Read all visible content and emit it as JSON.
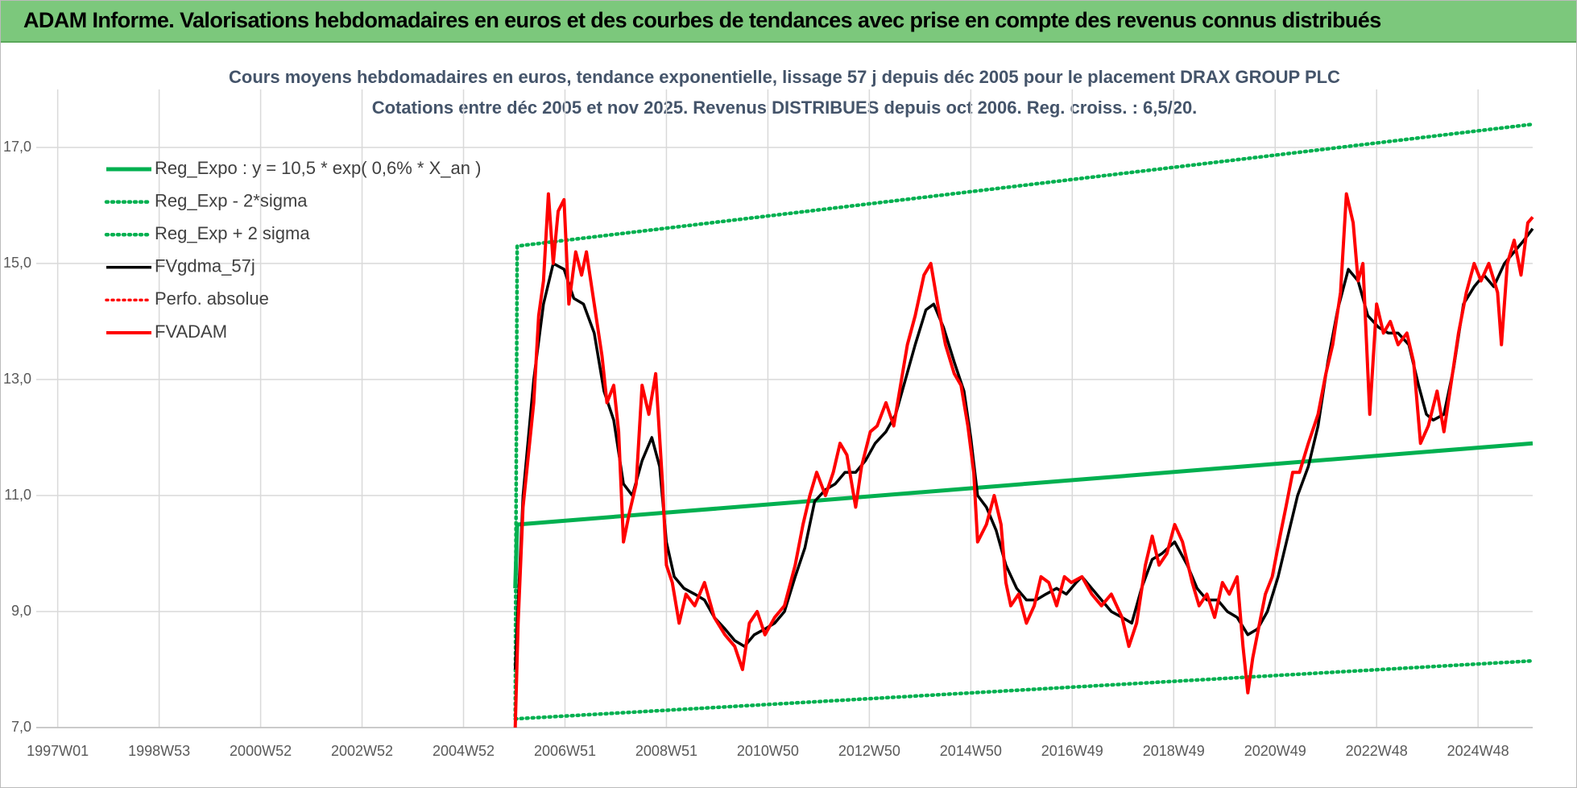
{
  "header": {
    "title": "ADAM Informe. Valorisations hebdomadaires en euros et des courbes de tendances avec prise en compte des revenus connus distribués"
  },
  "chart_data": {
    "type": "line",
    "title": "Cours moyens hebdomadaires en euros, tendance exponentielle, lissage 57 j depuis déc 2005 pour le placement DRAX GROUP PLC",
    "subtitle": "Cotations entre déc 2005 et nov 2025. Revenus DISTRIBUES depuis oct 2006. Reg. croiss. : 6,5/20.",
    "xlim": [
      -22,
      1512
    ],
    "xticks": [
      {
        "value": 0,
        "label": "1997W01"
      },
      {
        "value": 104,
        "label": "1998W53"
      },
      {
        "value": 208,
        "label": "2000W52"
      },
      {
        "value": 312,
        "label": "2002W52"
      },
      {
        "value": 416,
        "label": "2004W52"
      },
      {
        "value": 520,
        "label": "2006W51"
      },
      {
        "value": 624,
        "label": "2008W51"
      },
      {
        "value": 728,
        "label": "2010W50"
      },
      {
        "value": 832,
        "label": "2012W50"
      },
      {
        "value": 936,
        "label": "2014W50"
      },
      {
        "value": 1040,
        "label": "2016W49"
      },
      {
        "value": 1144,
        "label": "2018W49"
      },
      {
        "value": 1248,
        "label": "2020W49"
      },
      {
        "value": 1352,
        "label": "2022W48"
      },
      {
        "value": 1456,
        "label": "2024W48"
      }
    ],
    "ylim": [
      7,
      18
    ],
    "yticks": [
      {
        "value": 7,
        "label": "7,0"
      },
      {
        "value": 9,
        "label": "9,0"
      },
      {
        "value": 11,
        "label": "11,0"
      },
      {
        "value": 13,
        "label": "13,0"
      },
      {
        "value": 15,
        "label": "15,0"
      },
      {
        "value": 17,
        "label": "17,0"
      }
    ],
    "grid": true,
    "legend": "upper left",
    "series": [
      {
        "name": "Reg_Expo : y = 10,5 * exp( 0,6% *  X_an )",
        "color": "#00b050",
        "style": "solid",
        "x": [
          469,
          471,
          1512
        ],
        "values": [
          9.4,
          10.5,
          11.9
        ]
      },
      {
        "name": "Reg_Exp - 2*sigma",
        "color": "#00b050",
        "style": "dotted",
        "x": [
          469,
          1512
        ],
        "values": [
          7.15,
          8.15
        ]
      },
      {
        "name": "Reg_Exp + 2 sigma",
        "color": "#00b050",
        "style": "dotted",
        "x": [
          469,
          471,
          1512
        ],
        "values": [
          7.2,
          15.3,
          17.4
        ]
      },
      {
        "name": "FVgdma_57j",
        "color": "#000000",
        "style": "solid",
        "x": [
          469,
          477,
          488,
          498,
          508,
          519,
          529,
          539,
          550,
          560,
          570,
          580,
          589,
          599,
          609,
          617,
          624,
          632,
          642,
          653,
          663,
          673,
          684,
          694,
          704,
          714,
          725,
          735,
          745,
          756,
          766,
          776,
          787,
          797,
          807,
          818,
          828,
          838,
          849,
          859,
          869,
          879,
          890,
          898,
          908,
          919,
          929,
          936,
          943,
          952,
          962,
          972,
          983,
          993,
          1003,
          1013,
          1024,
          1034,
          1044,
          1050,
          1060,
          1070,
          1080,
          1091,
          1101,
          1111,
          1122,
          1132,
          1145,
          1158,
          1168,
          1178,
          1189,
          1199,
          1209,
          1220,
          1230,
          1240,
          1251,
          1261,
          1271,
          1282,
          1292,
          1302,
          1312,
          1323,
          1333,
          1343,
          1354,
          1364,
          1374,
          1385,
          1395,
          1403,
          1410,
          1421,
          1431,
          1441,
          1452,
          1462,
          1472,
          1483,
          1493,
          1503,
          1512
        ],
        "values": [
          8.0,
          11.0,
          13.0,
          14.3,
          15.0,
          14.9,
          14.4,
          14.3,
          13.8,
          12.8,
          12.3,
          11.2,
          11.0,
          11.6,
          12.0,
          11.5,
          10.2,
          9.6,
          9.4,
          9.3,
          9.2,
          8.9,
          8.7,
          8.5,
          8.4,
          8.6,
          8.7,
          8.8,
          9.0,
          9.6,
          10.1,
          10.9,
          11.1,
          11.2,
          11.4,
          11.4,
          11.6,
          11.9,
          12.1,
          12.4,
          13.0,
          13.6,
          14.2,
          14.3,
          13.9,
          13.3,
          12.8,
          12.0,
          11.0,
          10.8,
          10.4,
          9.8,
          9.4,
          9.2,
          9.2,
          9.3,
          9.4,
          9.3,
          9.5,
          9.6,
          9.4,
          9.2,
          9.0,
          8.9,
          8.8,
          9.4,
          9.9,
          10.0,
          10.2,
          9.8,
          9.4,
          9.2,
          9.2,
          9.0,
          8.9,
          8.6,
          8.7,
          9.0,
          9.6,
          10.3,
          11.0,
          11.5,
          12.2,
          13.3,
          14.2,
          14.9,
          14.7,
          14.1,
          13.9,
          13.8,
          13.8,
          13.6,
          12.9,
          12.4,
          12.3,
          12.4,
          13.2,
          14.3,
          14.6,
          14.8,
          14.6,
          15.0,
          15.2,
          15.4,
          15.6
        ]
      },
      {
        "name": "Perfo. absolue",
        "color": "#ff0000",
        "style": "dotted",
        "x": [],
        "values": []
      },
      {
        "name": "FVADAM",
        "color": "#ff0000",
        "style": "solid",
        "x": [
          469,
          472,
          477,
          488,
          493,
          498,
          503,
          508,
          513,
          519,
          524,
          531,
          537,
          542,
          550,
          558,
          563,
          570,
          575,
          580,
          586,
          593,
          599,
          606,
          613,
          620,
          624,
          630,
          637,
          644,
          653,
          663,
          673,
          684,
          694,
          702,
          709,
          717,
          725,
          735,
          745,
          756,
          764,
          771,
          778,
          787,
          795,
          802,
          809,
          818,
          824,
          833,
          840,
          849,
          857,
          864,
          871,
          879,
          888,
          895,
          902,
          910,
          919,
          926,
          933,
          939,
          943,
          952,
          960,
          967,
          972,
          977,
          985,
          993,
          1001,
          1008,
          1016,
          1024,
          1032,
          1039,
          1050,
          1060,
          1070,
          1080,
          1091,
          1098,
          1106,
          1115,
          1122,
          1129,
          1137,
          1145,
          1153,
          1163,
          1170,
          1178,
          1186,
          1194,
          1201,
          1209,
          1215,
          1220,
          1225,
          1232,
          1238,
          1245,
          1253,
          1259,
          1266,
          1273,
          1282,
          1292,
          1300,
          1307,
          1315,
          1321,
          1328,
          1333,
          1338,
          1345,
          1352,
          1359,
          1366,
          1374,
          1383,
          1390,
          1397,
          1405,
          1414,
          1421,
          1428,
          1436,
          1444,
          1452,
          1459,
          1467,
          1476,
          1480,
          1486,
          1493,
          1500,
          1507,
          1512
        ],
        "values": [
          7.0,
          8.8,
          10.8,
          12.6,
          14.1,
          14.7,
          16.2,
          15.0,
          15.9,
          16.1,
          14.3,
          15.2,
          14.8,
          15.2,
          14.3,
          13.4,
          12.6,
          12.9,
          12.1,
          10.2,
          10.7,
          11.2,
          12.9,
          12.4,
          13.1,
          11.2,
          9.8,
          9.5,
          8.8,
          9.3,
          9.1,
          9.5,
          8.9,
          8.6,
          8.4,
          8.0,
          8.8,
          9.0,
          8.6,
          8.9,
          9.1,
          9.8,
          10.5,
          11.0,
          11.4,
          11.0,
          11.4,
          11.9,
          11.7,
          10.8,
          11.5,
          12.1,
          12.2,
          12.6,
          12.2,
          12.9,
          13.6,
          14.1,
          14.8,
          15.0,
          14.3,
          13.6,
          13.1,
          12.9,
          12.2,
          11.4,
          10.2,
          10.5,
          11.0,
          10.5,
          9.5,
          9.1,
          9.3,
          8.8,
          9.1,
          9.6,
          9.5,
          9.1,
          9.6,
          9.5,
          9.6,
          9.3,
          9.1,
          9.3,
          8.9,
          8.4,
          8.8,
          9.8,
          10.3,
          9.8,
          10.0,
          10.5,
          10.2,
          9.5,
          9.1,
          9.3,
          8.9,
          9.5,
          9.3,
          9.6,
          8.4,
          7.6,
          8.2,
          8.8,
          9.3,
          9.6,
          10.3,
          10.8,
          11.4,
          11.4,
          11.9,
          12.4,
          13.1,
          13.6,
          14.5,
          16.2,
          15.7,
          14.7,
          15.0,
          12.4,
          14.3,
          13.8,
          14.0,
          13.6,
          13.8,
          13.3,
          11.9,
          12.2,
          12.8,
          12.1,
          12.9,
          13.8,
          14.5,
          15.0,
          14.7,
          15.0,
          14.5,
          13.6,
          15.0,
          15.4,
          14.8,
          15.7,
          15.8
        ]
      }
    ]
  }
}
